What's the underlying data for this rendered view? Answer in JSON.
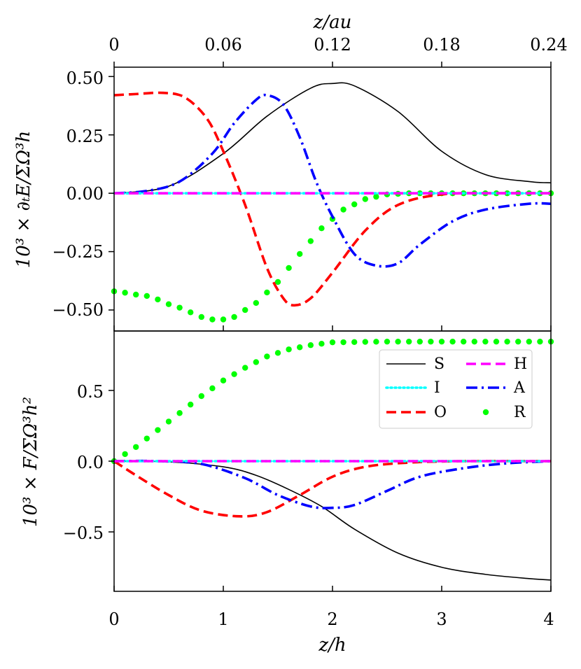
{
  "chart_data": [
    {
      "type": "line",
      "panel": "top",
      "ylabel": "10³ × ∂ₜE/ΣΩ³h",
      "top_xlabel": "z/au",
      "top_xticks": [
        "0",
        "0.06",
        "0.12",
        "0.18",
        "0.24"
      ],
      "xlim": [
        0,
        4
      ],
      "ylim": [
        -0.59,
        0.54
      ],
      "yticks": [
        "0.50",
        "0.25",
        "0.00",
        "−0.25",
        "−0.50"
      ],
      "yticks_values": [
        0.5,
        0.25,
        0.0,
        -0.25,
        -0.5
      ],
      "grid": false,
      "series": [
        {
          "name": "S",
          "color": "#000000",
          "style": "solid",
          "x": [
            0,
            0.5,
            1.0,
            1.4,
            1.8,
            2.0,
            2.2,
            2.6,
            3.0,
            3.4,
            3.8,
            4.0
          ],
          "y": [
            0,
            0.03,
            0.17,
            0.33,
            0.45,
            0.47,
            0.46,
            0.35,
            0.18,
            0.08,
            0.05,
            0.045
          ]
        },
        {
          "name": "I",
          "color": "#00ffff",
          "style": "dotted",
          "x": [
            0,
            4
          ],
          "y": [
            0,
            0
          ]
        },
        {
          "name": "O",
          "color": "#ff0000",
          "style": "dashed",
          "x": [
            0,
            0.2,
            0.45,
            0.65,
            0.85,
            1.0,
            1.2,
            1.4,
            1.55,
            1.65,
            1.8,
            2.0,
            2.3,
            2.6,
            3.0,
            3.5,
            4.0
          ],
          "y": [
            0.42,
            0.425,
            0.43,
            0.41,
            0.32,
            0.18,
            -0.05,
            -0.32,
            -0.45,
            -0.48,
            -0.45,
            -0.34,
            -0.16,
            -0.05,
            -0.005,
            0,
            0
          ]
        },
        {
          "name": "H",
          "color": "#ff00ff",
          "style": "dashed",
          "x": [
            0,
            4
          ],
          "y": [
            0,
            0
          ]
        },
        {
          "name": "A",
          "color": "#0000ff",
          "style": "dashdot",
          "x": [
            0,
            0.3,
            0.6,
            0.9,
            1.1,
            1.3,
            1.4,
            1.55,
            1.7,
            1.85,
            2.0,
            2.2,
            2.4,
            2.6,
            2.8,
            3.1,
            3.4,
            3.8,
            4.0
          ],
          "y": [
            0,
            0.01,
            0.05,
            0.17,
            0.3,
            0.4,
            0.42,
            0.38,
            0.24,
            0.05,
            -0.1,
            -0.26,
            -0.31,
            -0.3,
            -0.22,
            -0.12,
            -0.07,
            -0.045,
            -0.045
          ]
        },
        {
          "name": "R",
          "color": "#00ff00",
          "style": "dots",
          "x": [
            0,
            0.3,
            0.6,
            0.8,
            0.95,
            1.1,
            1.3,
            1.5,
            1.7,
            1.9,
            2.1,
            2.3,
            2.5,
            2.7,
            3.0,
            3.5,
            4.0
          ],
          "y": [
            -0.42,
            -0.44,
            -0.49,
            -0.53,
            -0.545,
            -0.53,
            -0.47,
            -0.38,
            -0.26,
            -0.15,
            -0.07,
            -0.025,
            -0.005,
            0,
            0,
            0,
            0
          ]
        }
      ]
    },
    {
      "type": "line",
      "panel": "bottom",
      "ylabel": "10³ × F/ΣΩ³h²",
      "xlabel": "z/h",
      "xlim": [
        0,
        4
      ],
      "xticks": [
        "0",
        "1",
        "2",
        "3",
        "4"
      ],
      "xticks_values": [
        0,
        1,
        2,
        3,
        4
      ],
      "ylim": [
        -0.92,
        0.92
      ],
      "yticks": [
        "0.5",
        "0.0",
        "−0.5"
      ],
      "yticks_values": [
        0.5,
        0.0,
        -0.5
      ],
      "grid": false,
      "legend": {
        "placement": "upper right",
        "columns": 2,
        "entries": [
          "S",
          "H",
          "I",
          "A",
          "O",
          "R"
        ]
      },
      "series": [
        {
          "name": "S",
          "color": "#000000",
          "style": "solid",
          "x": [
            0,
            0.5,
            1.0,
            1.3,
            1.6,
            1.9,
            2.2,
            2.6,
            3.0,
            3.4,
            3.8,
            4.0
          ],
          "y": [
            0,
            -0.005,
            -0.04,
            -0.1,
            -0.2,
            -0.32,
            -0.48,
            -0.65,
            -0.75,
            -0.8,
            -0.83,
            -0.84
          ]
        },
        {
          "name": "I",
          "color": "#00ffff",
          "style": "dotted",
          "x": [
            0,
            4
          ],
          "y": [
            0,
            0
          ]
        },
        {
          "name": "O",
          "color": "#ff0000",
          "style": "dashed",
          "x": [
            0,
            0.2,
            0.5,
            0.8,
            1.15,
            1.4,
            1.7,
            2.0,
            2.3,
            2.7,
            3.2,
            4.0
          ],
          "y": [
            0,
            -0.1,
            -0.24,
            -0.35,
            -0.39,
            -0.36,
            -0.24,
            -0.11,
            -0.04,
            -0.01,
            0,
            0
          ]
        },
        {
          "name": "H",
          "color": "#ff00ff",
          "style": "dashed",
          "x": [
            0,
            4
          ],
          "y": [
            0,
            0
          ]
        },
        {
          "name": "A",
          "color": "#0000ff",
          "style": "dashdot",
          "x": [
            0,
            0.4,
            0.8,
            1.2,
            1.5,
            1.8,
            2.0,
            2.2,
            2.5,
            2.8,
            3.2,
            3.6,
            4.0
          ],
          "y": [
            0,
            0,
            -0.02,
            -0.12,
            -0.24,
            -0.32,
            -0.33,
            -0.31,
            -0.21,
            -0.11,
            -0.05,
            -0.015,
            0
          ]
        },
        {
          "name": "R",
          "color": "#00ff00",
          "style": "dots",
          "x": [
            0,
            0.2,
            0.4,
            0.6,
            0.8,
            1.0,
            1.2,
            1.4,
            1.6,
            1.8,
            2.0,
            2.5,
            3.0,
            3.5,
            4.0
          ],
          "y": [
            0,
            0.1,
            0.22,
            0.34,
            0.46,
            0.57,
            0.66,
            0.74,
            0.79,
            0.82,
            0.84,
            0.845,
            0.845,
            0.845,
            0.845
          ]
        }
      ]
    }
  ]
}
